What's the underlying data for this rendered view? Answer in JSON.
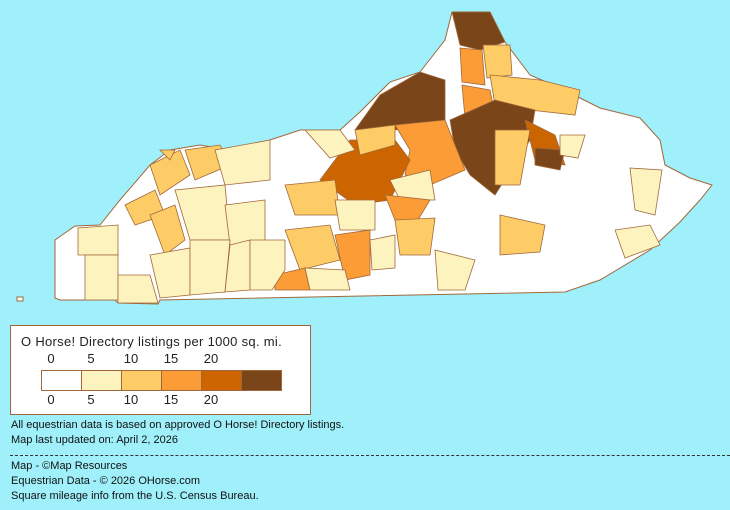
{
  "map": {
    "region": "Kentucky counties",
    "border_color": "#a0683a"
  },
  "legend": {
    "title": "O Horse! Directory listings per 1000 sq. mi.",
    "ticks": [
      "0",
      "5",
      "10",
      "15",
      "20"
    ],
    "colors": [
      "#ffffff",
      "#fdf3bf",
      "#fdcc66",
      "#fb9c37",
      "#cc6500",
      "#7a4519"
    ]
  },
  "notes": {
    "line1": "All equestrian data is based on approved O Horse! Directory listings.",
    "line2": "Map last updated on: April 2, 2026"
  },
  "credits": {
    "map": "Map - ©Map Resources",
    "data": "Equestrian Data - © 2026 OHorse.com",
    "census": "Square mileage info from the U.S. Census Bureau."
  }
}
